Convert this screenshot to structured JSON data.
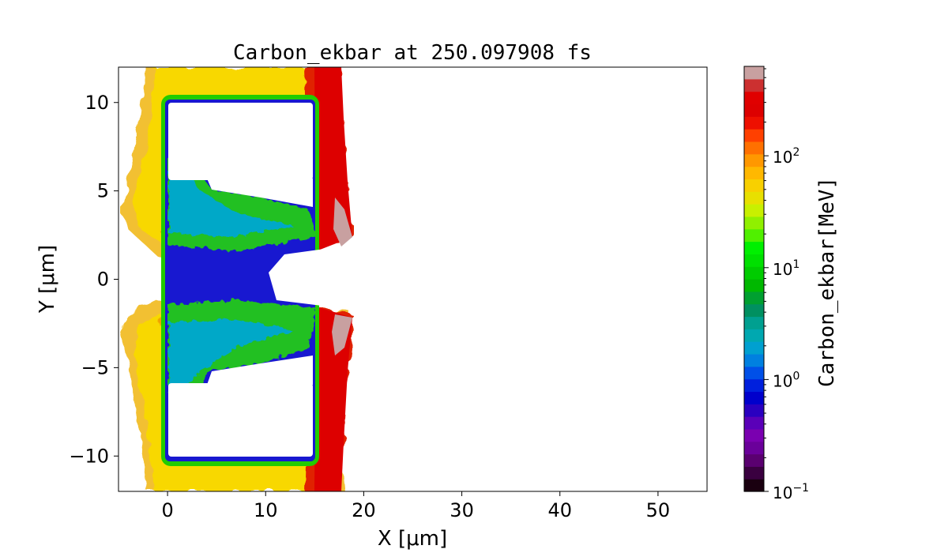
{
  "chart_data": {
    "type": "heatmap",
    "title": "Carbon_ekbar at 250.097908 fs",
    "xlabel": "X  [μm]",
    "ylabel": "Y  [μm]",
    "xlim": [
      -5,
      55
    ],
    "ylim": [
      -12,
      12
    ],
    "x_ticks": [
      0,
      10,
      20,
      30,
      40,
      50
    ],
    "x_tick_labels": [
      "0",
      "10",
      "20",
      "30",
      "40",
      "50"
    ],
    "y_ticks": [
      -10,
      -5,
      0,
      5,
      10
    ],
    "y_tick_labels": [
      "−10",
      "−5",
      "0",
      "5",
      "10"
    ],
    "grid": false,
    "colorbar": {
      "label": "Carbon_ekbar[MeV]",
      "scale": "log",
      "range": [
        0.1,
        630
      ],
      "ticks": [
        0.1,
        1,
        10,
        100
      ],
      "tick_labels": [
        {
          "base": "10",
          "exp": "−1"
        },
        {
          "base": "10",
          "exp": "0"
        },
        {
          "base": "10",
          "exp": "1"
        },
        {
          "base": "10",
          "exp": "2"
        }
      ],
      "colors": [
        "#1a0010",
        "#3a0040",
        "#5a0070",
        "#6a009a",
        "#7a00b0",
        "#5a00b8",
        "#2a00c0",
        "#0000cc",
        "#0020dd",
        "#0050e8",
        "#0080e0",
        "#00a0d0",
        "#00a8b0",
        "#00a090",
        "#009060",
        "#00a030",
        "#00b800",
        "#00cc00",
        "#00e000",
        "#00f000",
        "#50f000",
        "#90f000",
        "#c8f000",
        "#e8e000",
        "#f8d000",
        "#ffb800",
        "#ff9800",
        "#ff7000",
        "#ff4000",
        "#ee1000",
        "#dd0000",
        "#e00000",
        "#cc3030",
        "#c8a0a0"
      ]
    },
    "field_description": {
      "target_x_range": [
        0,
        15
      ],
      "target_y_range": [
        -10,
        10
      ],
      "hot_front_x": 17,
      "energy_range_mev": [
        0.1,
        630
      ]
    }
  }
}
